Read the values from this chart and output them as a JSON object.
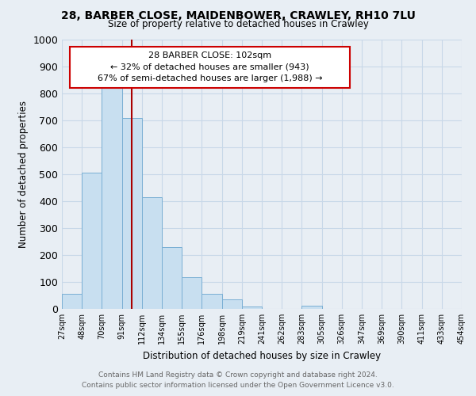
{
  "title": "28, BARBER CLOSE, MAIDENBOWER, CRAWLEY, RH10 7LU",
  "subtitle": "Size of property relative to detached houses in Crawley",
  "xlabel": "Distribution of detached houses by size in Crawley",
  "ylabel": "Number of detached properties",
  "footer_line1": "Contains HM Land Registry data © Crown copyright and database right 2024.",
  "footer_line2": "Contains public sector information licensed under the Open Government Licence v3.0.",
  "bin_labels": [
    "27sqm",
    "48sqm",
    "70sqm",
    "91sqm",
    "112sqm",
    "134sqm",
    "155sqm",
    "176sqm",
    "198sqm",
    "219sqm",
    "241sqm",
    "262sqm",
    "283sqm",
    "305sqm",
    "326sqm",
    "347sqm",
    "369sqm",
    "390sqm",
    "411sqm",
    "433sqm",
    "454sqm"
  ],
  "bar_heights": [
    55,
    505,
    820,
    710,
    415,
    230,
    118,
    57,
    35,
    10,
    0,
    0,
    12,
    0,
    0,
    0,
    0,
    0,
    0,
    0
  ],
  "bar_color": "#c8dff0",
  "bar_edge_color": "#7aafd4",
  "vline_color": "#aa0000",
  "annotation_box_color": "#cc0000",
  "ylim": [
    0,
    1000
  ],
  "yticks": [
    0,
    100,
    200,
    300,
    400,
    500,
    600,
    700,
    800,
    900,
    1000
  ],
  "grid_color": "#c8d8e8",
  "background_color": "#e8eef4"
}
